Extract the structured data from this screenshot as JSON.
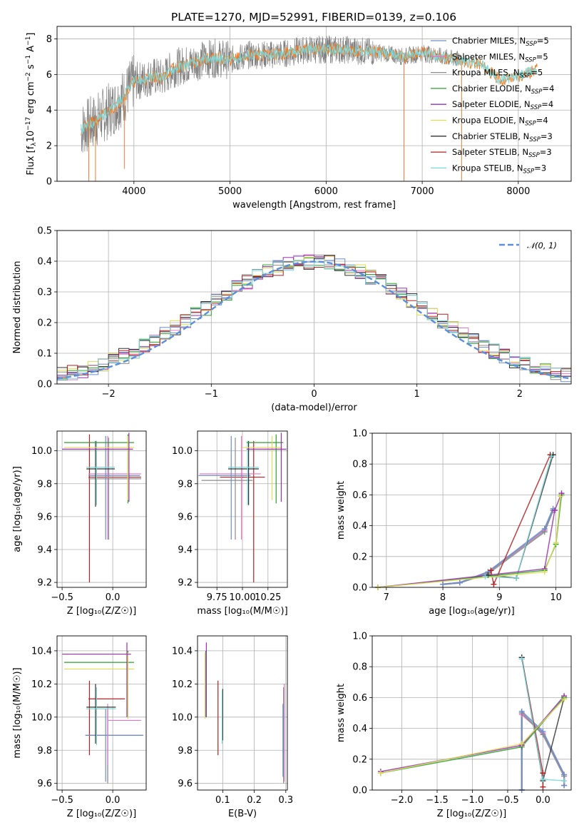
{
  "figure_title": "PLATE=1270, MJD=52991, FIBERID=0139, z=0.106",
  "colors": {
    "Chabrier MILES": "#6b8ec8",
    "Salpeter MILES": "#e377c2",
    "Kroupa MILES": "#8c8c8c",
    "Chabrier ELODIE": "#2ca02c",
    "Salpeter ELODIE": "#9b30b0",
    "Kroupa ELODIE": "#dddd55",
    "Chabrier STELIB": "#333333",
    "Salpeter STELIB": "#b22222",
    "Kroupa STELIB": "#7fd6d6",
    "gauss": "#5b8fdb",
    "grid": "#b0b0b0"
  },
  "chart_data": [
    {
      "id": "spectrum",
      "type": "line",
      "xlabel": "wavelength [Angstrom, rest frame]",
      "ylabel": "Flux [f$_\\lambda$10$^{-17}$ erg cm$^{-2}$ s$^{-1}$ A$^{-1}$]",
      "ylabel_parts": {
        "a": "Flux [f",
        "b": "λ",
        "c": "10",
        "d": "−17",
        "e": " erg cm",
        "f": "−2",
        "g": " s",
        "h": "−1",
        "i": " A",
        "j": "−1",
        "k": "]"
      },
      "xlim": [
        3200,
        8550
      ],
      "ylim": [
        0,
        8.7
      ],
      "xticks": [
        "4000",
        "5000",
        "6000",
        "7000",
        "8000"
      ],
      "yticks": [
        "0",
        "2",
        "4",
        "6",
        "8"
      ],
      "legend": [
        {
          "name": "Chabrier MILES",
          "lib": "5"
        },
        {
          "name": "Salpeter MILES",
          "lib": "5"
        },
        {
          "name": "Kroupa MILES",
          "lib": "5"
        },
        {
          "name": "Chabrier ELODIE",
          "lib": "4"
        },
        {
          "name": "Salpeter ELODIE",
          "lib": "4"
        },
        {
          "name": "Kroupa ELODIE",
          "lib": "4"
        },
        {
          "name": "Chabrier STELIB",
          "lib": "3"
        },
        {
          "name": "Salpeter STELIB",
          "lib": "3"
        },
        {
          "name": "Kroupa STELIB",
          "lib": "3"
        }
      ],
      "legend_nssp_sub": "SSP",
      "model_curve": {
        "x": [
          3450,
          3600,
          3700,
          3800,
          3900,
          4000,
          4100,
          4200,
          4300,
          4400,
          4500,
          4600,
          4700,
          4800,
          4900,
          5000,
          5200,
          5400,
          5600,
          5800,
          6000,
          6200,
          6400,
          6600,
          6800,
          7000,
          7200,
          7400,
          7600,
          7700,
          7800,
          8000,
          8200
        ],
        "y": [
          2.9,
          3.4,
          3.8,
          4.2,
          4.8,
          5.6,
          5.7,
          5.9,
          5.8,
          6.3,
          6.5,
          6.6,
          6.8,
          6.9,
          6.9,
          6.8,
          7.1,
          7.1,
          7.2,
          7.4,
          7.4,
          7.4,
          7.3,
          7.2,
          7.0,
          7.2,
          7.0,
          6.8,
          6.6,
          6.2,
          5.7,
          5.9,
          6.3
        ]
      }
    },
    {
      "id": "residuals",
      "type": "histogram",
      "xlabel": "(data-model)/error",
      "ylabel": "Normed distribution",
      "xlim": [
        -2.5,
        2.5
      ],
      "ylim": [
        0,
        0.5
      ],
      "xticks": [
        "−2",
        "−1",
        "0",
        "1",
        "2"
      ],
      "yticks": [
        "0.0",
        "0.1",
        "0.2",
        "0.3",
        "0.4",
        "0.5"
      ],
      "legend": "𝒩(0, 1)",
      "gaussian": {
        "mu": 0,
        "sigma": 1
      }
    },
    {
      "id": "age_vs_Z",
      "type": "scatter",
      "xlabel": "Z [log₁₀(Z/Z☉)]",
      "ylabel": "age  [log₁₀(age/yr)]",
      "xlim": [
        -0.55,
        0.33
      ],
      "ylim": [
        9.17,
        10.12
      ],
      "xticks": [
        "−0.5",
        "0.0"
      ],
      "yticks": [
        "9.2",
        "9.4",
        "9.6",
        "9.8",
        "10.0"
      ],
      "points": [
        {
          "x": -0.23,
          "y": 9.84,
          "xl": -0.24,
          "xh": 0.28,
          "yl": 9.2,
          "yh": 10.1,
          "c": "Salpeter STELIB"
        },
        {
          "x": -0.05,
          "y": 9.86,
          "xl": -0.24,
          "xh": 0.28,
          "yl": 9.46,
          "yh": 10.09,
          "c": "Salpeter MILES"
        },
        {
          "x": -0.04,
          "y": 9.83,
          "xl": -0.24,
          "xh": 0.28,
          "yl": 9.46,
          "yh": 10.08,
          "c": "Kroupa MILES"
        },
        {
          "x": -0.07,
          "y": 9.85,
          "xl": -0.24,
          "xh": 0.27,
          "yl": 9.46,
          "yh": 10.09,
          "c": "Chabrier MILES"
        },
        {
          "x": -0.17,
          "y": 9.89,
          "xl": -0.26,
          "xh": 0.02,
          "yl": 9.66,
          "yh": 10.06,
          "c": "Chabrier STELIB"
        },
        {
          "x": -0.16,
          "y": 9.9,
          "xl": -0.26,
          "xh": 0.02,
          "yl": 9.67,
          "yh": 10.06,
          "c": "Kroupa STELIB"
        },
        {
          "x": 0.15,
          "y": 10.05,
          "xl": -0.48,
          "xh": 0.21,
          "yl": 9.68,
          "yh": 10.1,
          "c": "Chabrier ELODIE"
        },
        {
          "x": 0.15,
          "y": 10.02,
          "xl": -0.48,
          "xh": 0.21,
          "yl": 9.7,
          "yh": 10.09,
          "c": "Kroupa ELODIE"
        },
        {
          "x": 0.16,
          "y": 10.01,
          "xl": -0.5,
          "xh": 0.2,
          "yl": 9.69,
          "yh": 10.11,
          "c": "Salpeter ELODIE"
        }
      ]
    },
    {
      "id": "age_vs_mass",
      "type": "scatter",
      "xlabel": "mass [log₁₀(M/M☉)]",
      "ylabel": "",
      "xlim": [
        9.56,
        10.44
      ],
      "ylim": [
        9.17,
        10.12
      ],
      "xticks": [
        "9.75",
        "10.00",
        "10.25"
      ],
      "yticks": [
        "9.2",
        "9.4",
        "9.6",
        "9.8",
        "10.0"
      ],
      "points": [
        {
          "x": 10.11,
          "y": 9.84,
          "xl": 9.78,
          "xh": 10.22,
          "yl": 9.2,
          "yh": 10.06,
          "c": "Salpeter STELIB"
        },
        {
          "x": 9.99,
          "y": 9.86,
          "xl": 9.58,
          "xh": 10.18,
          "yl": 9.46,
          "yh": 10.09,
          "c": "Salpeter MILES"
        },
        {
          "x": 9.93,
          "y": 9.82,
          "xl": 9.6,
          "xh": 10.1,
          "yl": 9.46,
          "yh": 10.08,
          "c": "Kroupa MILES"
        },
        {
          "x": 9.89,
          "y": 9.85,
          "xl": 9.57,
          "xh": 10.08,
          "yl": 9.46,
          "yh": 10.09,
          "c": "Chabrier MILES"
        },
        {
          "x": 10.06,
          "y": 9.89,
          "xl": 9.86,
          "xh": 10.16,
          "yl": 9.67,
          "yh": 10.06,
          "c": "Chabrier STELIB"
        },
        {
          "x": 10.05,
          "y": 9.9,
          "xl": 9.86,
          "xh": 10.16,
          "yl": 9.67,
          "yh": 10.06,
          "c": "Kroupa STELIB"
        },
        {
          "x": 10.33,
          "y": 10.05,
          "xl": 10.04,
          "xh": 10.4,
          "yl": 9.68,
          "yh": 10.1,
          "c": "Chabrier ELODIE"
        },
        {
          "x": 10.29,
          "y": 10.02,
          "xl": 10.0,
          "xh": 10.39,
          "yl": 9.7,
          "yh": 10.09,
          "c": "Kroupa ELODIE"
        },
        {
          "x": 10.38,
          "y": 10.01,
          "xl": 10.04,
          "xh": 10.43,
          "yl": 9.69,
          "yh": 10.11,
          "c": "Salpeter ELODIE"
        }
      ]
    },
    {
      "id": "mass_weight_vs_age",
      "type": "line",
      "xlabel": "age  [log₁₀(age/yr)]",
      "ylabel": "mass weight",
      "xlim": [
        6.75,
        10.27
      ],
      "ylim": [
        0,
        1.0
      ],
      "xticks": [
        "7",
        "8",
        "9",
        "10"
      ],
      "yticks": [
        "0.0",
        "0.2",
        "0.4",
        "0.6",
        "0.8",
        "1.0"
      ],
      "series": [
        {
          "c": "Salpeter MILES",
          "x": [
            8.0,
            8.3,
            8.8,
            9.8,
            9.95
          ],
          "y": [
            0.02,
            0.03,
            0.1,
            0.37,
            0.5
          ]
        },
        {
          "c": "Kroupa MILES",
          "x": [
            8.0,
            8.3,
            8.8,
            9.8,
            9.95
          ],
          "y": [
            0.02,
            0.03,
            0.09,
            0.36,
            0.5
          ]
        },
        {
          "c": "Chabrier MILES",
          "x": [
            8.0,
            8.3,
            8.8,
            9.8,
            9.95
          ],
          "y": [
            0.02,
            0.03,
            0.1,
            0.38,
            0.51
          ]
        },
        {
          "c": "Salpeter STELIB",
          "x": [
            8.85,
            8.9,
            9.9
          ],
          "y": [
            0.11,
            0.02,
            0.86
          ]
        },
        {
          "c": "Chabrier STELIB",
          "x": [
            8.8,
            9.3,
            9.95
          ],
          "y": [
            0.08,
            0.06,
            0.86
          ]
        },
        {
          "c": "Kroupa STELIB",
          "x": [
            8.75,
            9.3,
            9.92
          ],
          "y": [
            0.07,
            0.06,
            0.85
          ]
        },
        {
          "c": "Chabrier ELODIE",
          "x": [
            6.85,
            9.8,
            10.0,
            10.1
          ],
          "y": [
            0.0,
            0.11,
            0.28,
            0.6
          ]
        },
        {
          "c": "Salpeter ELODIE",
          "x": [
            6.85,
            9.8,
            9.98,
            10.1
          ],
          "y": [
            0.0,
            0.12,
            0.5,
            0.61
          ]
        },
        {
          "c": "Kroupa ELODIE",
          "x": [
            6.85,
            9.8,
            10.0,
            10.08
          ],
          "y": [
            0.0,
            0.1,
            0.29,
            0.59
          ]
        }
      ]
    },
    {
      "id": "mass_vs_Z",
      "type": "scatter",
      "xlabel": "Z [log₁₀(Z/Z☉)]",
      "ylabel": "mass [log₁₀(M/M☉)]",
      "xlim": [
        -0.55,
        0.33
      ],
      "ylim": [
        9.56,
        10.49
      ],
      "xticks": [
        "−0.5",
        "0.0"
      ],
      "yticks": [
        "9.6",
        "9.8",
        "10.0",
        "10.2",
        "10.4"
      ],
      "points": [
        {
          "x": -0.23,
          "y": 10.11,
          "xl": -0.24,
          "xh": 0.12,
          "yl": 9.77,
          "yh": 10.22,
          "c": "Salpeter STELIB"
        },
        {
          "x": -0.05,
          "y": 9.89,
          "xl": -0.27,
          "xh": 0.3,
          "yl": 9.61,
          "yh": 10.05,
          "c": "Salpeter MILES"
        },
        {
          "x": -0.05,
          "y": 9.89,
          "xl": -0.27,
          "xh": 0.3,
          "yl": 9.6,
          "yh": 10.05,
          "c": "Kroupa MILES"
        },
        {
          "x": -0.07,
          "y": 9.89,
          "xl": -0.27,
          "xh": 0.3,
          "yl": 9.61,
          "yh": 10.05,
          "c": "Chabrier MILES"
        },
        {
          "x": -0.05,
          "y": 9.98,
          "xl": -0.05,
          "xh": 0.28,
          "yl": 9.71,
          "yh": 10.08,
          "c": "Salpeter MILES"
        },
        {
          "x": -0.17,
          "y": 10.06,
          "xl": -0.26,
          "xh": 0.03,
          "yl": 9.84,
          "yh": 10.2,
          "c": "Chabrier STELIB"
        },
        {
          "x": -0.16,
          "y": 10.05,
          "xl": -0.26,
          "xh": 0.03,
          "yl": 9.83,
          "yh": 10.18,
          "c": "Kroupa STELIB"
        },
        {
          "x": 0.15,
          "y": 10.33,
          "xl": -0.48,
          "xh": 0.21,
          "yl": 10.0,
          "yh": 10.4,
          "c": "Chabrier ELODIE"
        },
        {
          "x": 0.15,
          "y": 10.29,
          "xl": -0.48,
          "xh": 0.21,
          "yl": 9.99,
          "yh": 10.39,
          "c": "Kroupa ELODIE"
        },
        {
          "x": 0.14,
          "y": 10.38,
          "xl": -0.5,
          "xh": 0.18,
          "yl": 10.0,
          "yh": 10.45,
          "c": "Salpeter ELODIE"
        }
      ]
    },
    {
      "id": "mass_vs_ebv",
      "type": "scatter",
      "xlabel": "E(B-V)",
      "ylabel": "",
      "xlim": [
        0.02,
        0.305
      ],
      "ylim": [
        9.56,
        10.49
      ],
      "xticks": [
        "0.1",
        "0.2",
        "0.3"
      ],
      "yticks": [
        "9.6",
        "9.8",
        "10.0",
        "10.2",
        "10.4"
      ],
      "points": [
        {
          "x": 0.085,
          "y": 10.11,
          "yl": 9.77,
          "yh": 10.22,
          "c": "Salpeter STELIB"
        },
        {
          "x": 0.295,
          "y": 9.89,
          "yl": 9.61,
          "yh": 10.2,
          "c": "Salpeter MILES"
        },
        {
          "x": 0.293,
          "y": 9.89,
          "yl": 9.6,
          "yh": 10.18,
          "c": "Kroupa MILES"
        },
        {
          "x": 0.291,
          "y": 9.89,
          "yl": 9.64,
          "yh": 10.08,
          "c": "Chabrier MILES"
        },
        {
          "x": 0.1,
          "y": 10.06,
          "yl": 9.86,
          "yh": 10.17,
          "c": "Chabrier STELIB"
        },
        {
          "x": 0.098,
          "y": 10.05,
          "yl": 9.84,
          "yh": 10.16,
          "c": "Kroupa STELIB"
        },
        {
          "x": 0.046,
          "y": 10.33,
          "yl": 10.0,
          "yh": 10.4,
          "c": "Chabrier ELODIE"
        },
        {
          "x": 0.044,
          "y": 10.29,
          "yl": 9.99,
          "yh": 10.39,
          "c": "Kroupa ELODIE"
        },
        {
          "x": 0.048,
          "y": 10.38,
          "yl": 10.0,
          "yh": 10.45,
          "c": "Salpeter ELODIE"
        }
      ]
    },
    {
      "id": "mass_weight_vs_Z",
      "type": "line",
      "xlabel": "Z [log₁₀(Z/Z☉)]",
      "ylabel": "mass weight",
      "xlim": [
        -2.42,
        0.4
      ],
      "ylim": [
        0,
        1.0
      ],
      "xticks": [
        "−2.0",
        "−1.5",
        "−1.0",
        "−0.5",
        "0.0"
      ],
      "yticks": [
        "0.0",
        "0.2",
        "0.4",
        "0.6",
        "0.8",
        "1.0"
      ],
      "series": [
        {
          "c": "Salpeter MILES",
          "x": [
            -0.3,
            -0.3,
            0.0,
            0.3,
            0.3
          ],
          "y": [
            0.0,
            0.49,
            0.37,
            0.1,
            0.03
          ]
        },
        {
          "c": "Kroupa MILES",
          "x": [
            -0.3,
            -0.3,
            0.0,
            0.3,
            0.3
          ],
          "y": [
            0.0,
            0.5,
            0.36,
            0.09,
            0.03
          ]
        },
        {
          "c": "Chabrier MILES",
          "x": [
            -0.3,
            -0.3,
            0.0,
            0.3,
            0.3
          ],
          "y": [
            0.0,
            0.51,
            0.38,
            0.1,
            0.03
          ]
        },
        {
          "c": "Salpeter STELIB",
          "x": [
            -0.3,
            0.0,
            0.0
          ],
          "y": [
            0.86,
            0.11,
            0.02
          ]
        },
        {
          "c": "Chabrier STELIB",
          "x": [
            -0.3,
            0.0,
            0.3
          ],
          "y": [
            0.86,
            0.06,
            0.6
          ]
        },
        {
          "c": "Kroupa STELIB",
          "x": [
            -0.3,
            0.0,
            0.3
          ],
          "y": [
            0.85,
            0.07,
            0.06
          ]
        },
        {
          "c": "Chabrier ELODIE",
          "x": [
            -2.3,
            -0.3,
            0.3
          ],
          "y": [
            0.11,
            0.28,
            0.6
          ]
        },
        {
          "c": "Salpeter ELODIE",
          "x": [
            -2.3,
            -0.3,
            0.3
          ],
          "y": [
            0.12,
            0.29,
            0.61
          ]
        },
        {
          "c": "Kroupa ELODIE",
          "x": [
            -2.3,
            -0.3,
            0.3
          ],
          "y": [
            0.11,
            0.3,
            0.59
          ]
        }
      ]
    }
  ]
}
